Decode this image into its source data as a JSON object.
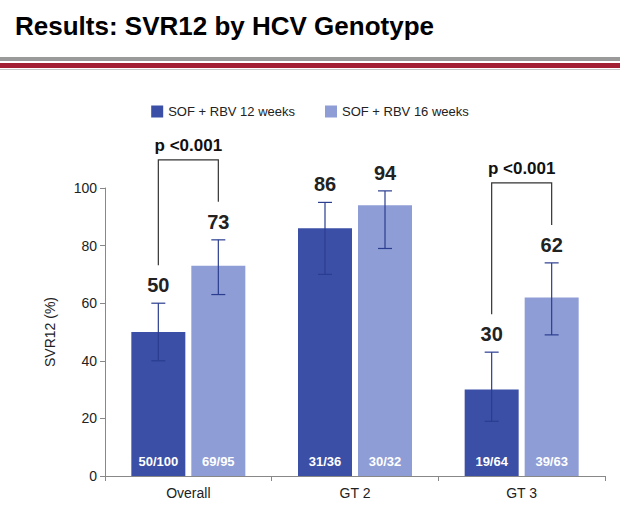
{
  "chart_data": {
    "type": "bar",
    "title": "Results: SVR12 by HCV Genotype",
    "ylabel": "SVR12 (%)",
    "categories": [
      "Overall",
      "GT 2",
      "GT 3"
    ],
    "series": [
      {
        "name": "SOF + RBV 12 weeks",
        "color": "#3b4fa6",
        "values": [
          50,
          86,
          30
        ],
        "error_low": [
          40,
          70,
          19
        ],
        "error_high": [
          60,
          95,
          43
        ],
        "bar_texts": [
          "50/100",
          "31/36",
          "19/64"
        ]
      },
      {
        "name": "SOF + RBV 16 weeks",
        "color": "#8e9dd6",
        "values": [
          73,
          94,
          62
        ],
        "error_low": [
          63,
          79,
          49
        ],
        "error_high": [
          82,
          99,
          74
        ],
        "bar_texts": [
          "69/95",
          "30/32",
          "39/63"
        ]
      }
    ],
    "annotations": [
      {
        "text": "p <0.001",
        "category": "Overall"
      },
      {
        "text": "p <0.001",
        "category": "GT 3"
      }
    ],
    "ylim": [
      0,
      100
    ],
    "yticks": [
      0,
      20,
      40,
      60,
      80,
      100
    ],
    "grid": false,
    "legend": "top",
    "data_labels": true
  }
}
